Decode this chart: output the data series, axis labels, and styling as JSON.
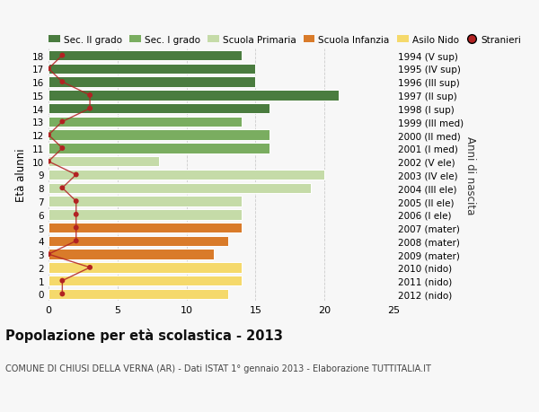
{
  "ages": [
    18,
    17,
    16,
    15,
    14,
    13,
    12,
    11,
    10,
    9,
    8,
    7,
    6,
    5,
    4,
    3,
    2,
    1,
    0
  ],
  "right_labels": [
    "1994 (V sup)",
    "1995 (IV sup)",
    "1996 (III sup)",
    "1997 (II sup)",
    "1998 (I sup)",
    "1999 (III med)",
    "2000 (II med)",
    "2001 (I med)",
    "2002 (V ele)",
    "2003 (IV ele)",
    "2004 (III ele)",
    "2005 (II ele)",
    "2006 (I ele)",
    "2007 (mater)",
    "2008 (mater)",
    "2009 (mater)",
    "2010 (nido)",
    "2011 (nido)",
    "2012 (nido)"
  ],
  "bar_values": [
    14,
    15,
    15,
    21,
    16,
    14,
    16,
    16,
    8,
    20,
    19,
    14,
    14,
    14,
    13,
    12,
    14,
    14,
    13
  ],
  "bar_colors": [
    "#4a7c3f",
    "#4a7c3f",
    "#4a7c3f",
    "#4a7c3f",
    "#4a7c3f",
    "#7aad60",
    "#7aad60",
    "#7aad60",
    "#c5dba8",
    "#c5dba8",
    "#c5dba8",
    "#c5dba8",
    "#c5dba8",
    "#d97b2a",
    "#d97b2a",
    "#d97b2a",
    "#f5d96b",
    "#f5d96b",
    "#f5d96b"
  ],
  "stranieri_values": [
    1,
    0,
    1,
    3,
    3,
    1,
    0,
    1,
    0,
    2,
    1,
    2,
    2,
    2,
    2,
    0,
    3,
    1,
    1
  ],
  "stranieri_color": "#b22222",
  "line_color": "#b22222",
  "legend_items": [
    {
      "label": "Sec. II grado",
      "color": "#4a7c3f"
    },
    {
      "label": "Sec. I grado",
      "color": "#7aad60"
    },
    {
      "label": "Scuola Primaria",
      "color": "#c5dba8"
    },
    {
      "label": "Scuola Infanzia",
      "color": "#d97b2a"
    },
    {
      "label": "Asilo Nido",
      "color": "#f5d96b"
    },
    {
      "label": "Stranieri",
      "color": "#b22222"
    }
  ],
  "ylabel_left": "Età alunni",
  "ylabel_right": "Anni di nascita",
  "xlim": [
    0,
    25
  ],
  "xticks": [
    0,
    5,
    10,
    15,
    20,
    25
  ],
  "title": "Popolazione per età scolastica - 2013",
  "subtitle": "COMUNE DI CHIUSI DELLA VERNA (AR) - Dati ISTAT 1° gennaio 2013 - Elaborazione TUTTITALIA.IT",
  "background_color": "#f7f7f7",
  "grid_color": "#cccccc"
}
